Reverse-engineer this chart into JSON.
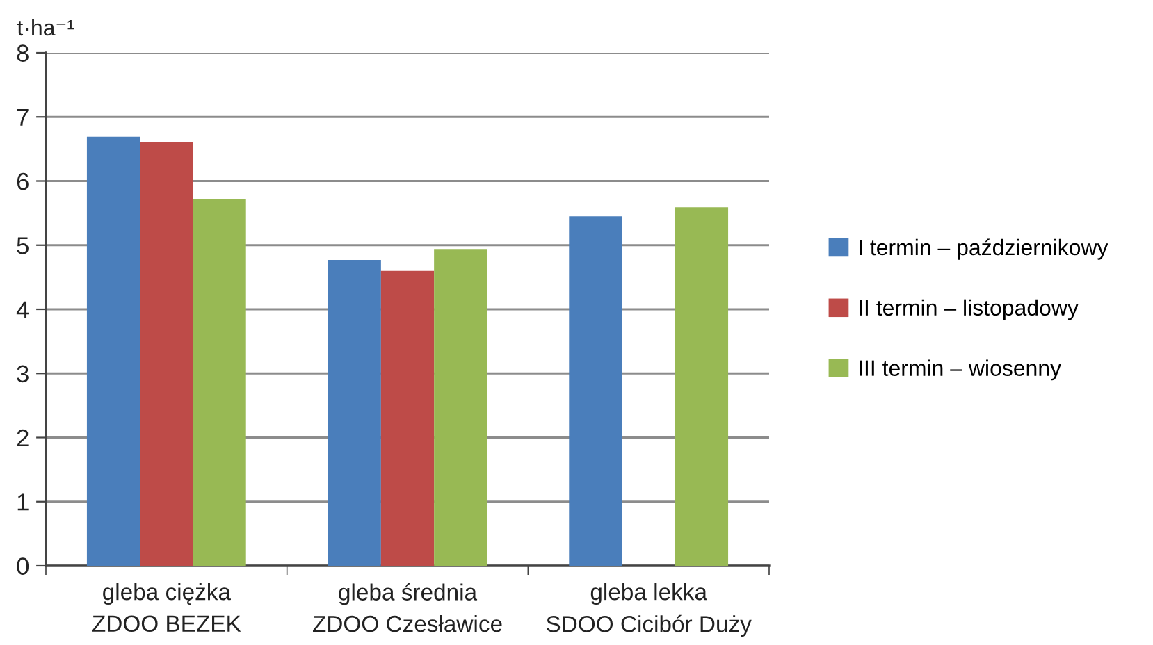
{
  "chart_data": {
    "type": "bar",
    "categories": [
      "gleba ciężka\nZDOO BEZEK",
      "gleba średnia\nZDOO Czesławice",
      "gleba lekka\nSDOO Cicibór Duży"
    ],
    "ylabel": "t·ha⁻¹",
    "series": [
      {
        "name": "I termin – październikowy",
        "color": "#4a7ebb",
        "values": [
          6.69,
          4.77,
          5.45
        ]
      },
      {
        "name": "II termin – listopadowy",
        "color": "#be4b48",
        "values": [
          6.61,
          4.6,
          null
        ]
      },
      {
        "name": "III termin – wiosenny",
        "color": "#98b954",
        "values": [
          5.72,
          4.94,
          5.59
        ]
      }
    ],
    "ylim": [
      0,
      8
    ],
    "yticks": [
      0,
      1,
      2,
      3,
      4,
      5,
      6,
      7,
      8
    ],
    "grid": "y",
    "legend": "right"
  }
}
